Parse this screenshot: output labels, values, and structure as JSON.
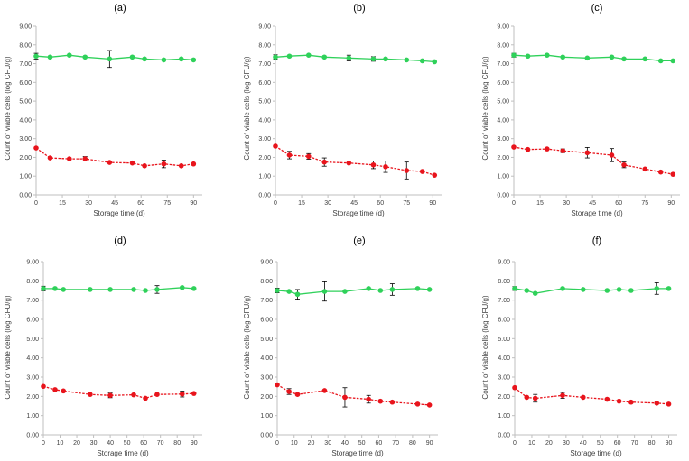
{
  "colors": {
    "green": "#2fd15a",
    "red": "#e8141c",
    "axis": "#bfbfbf",
    "text": "#404040"
  },
  "chart_data": [
    {
      "type": "line",
      "title": "(a)",
      "xlabel": "Storage time (d)",
      "ylabel": "Count of viable cells (log CFU/g)",
      "xlim": [
        0,
        95
      ],
      "xticks": [
        0,
        15,
        30,
        45,
        60,
        75,
        90
      ],
      "ylim": [
        0,
        9
      ],
      "yticks": [
        "0.00",
        "1.00",
        "2.00",
        "3.00",
        "4.00",
        "5.00",
        "6.00",
        "7.00",
        "8.00",
        "9.00"
      ],
      "series": [
        {
          "name": "green",
          "color": "#2fd15a",
          "dashed": false,
          "x": [
            0,
            8,
            19,
            28,
            42,
            55,
            62,
            73,
            83,
            90
          ],
          "y": [
            7.4,
            7.35,
            7.45,
            7.35,
            7.25,
            7.35,
            7.25,
            7.2,
            7.25,
            7.2
          ],
          "err": [
            0.15,
            0,
            0,
            0,
            0.45,
            0,
            0,
            0,
            0,
            0
          ]
        },
        {
          "name": "red",
          "color": "#e8141c",
          "dashed": true,
          "x": [
            0,
            8,
            19,
            28,
            42,
            55,
            62,
            73,
            83,
            90
          ],
          "y": [
            2.5,
            1.97,
            1.92,
            1.92,
            1.73,
            1.7,
            1.55,
            1.65,
            1.55,
            1.65
          ],
          "err": [
            0,
            0,
            0,
            0.12,
            0,
            0,
            0,
            0.2,
            0,
            0
          ]
        }
      ]
    },
    {
      "type": "line",
      "title": "(b)",
      "xlabel": "Storage time (d)",
      "ylabel": "Count of viable cells (log CFU/g)",
      "xlim": [
        0,
        95
      ],
      "xticks": [
        0,
        15,
        30,
        45,
        60,
        75,
        90
      ],
      "ylim": [
        0,
        9
      ],
      "yticks": [
        "0.00",
        "1.00",
        "2.00",
        "3.00",
        "4.00",
        "5.00",
        "6.00",
        "7.00",
        "8.00",
        "9.00"
      ],
      "series": [
        {
          "name": "green",
          "color": "#2fd15a",
          "dashed": false,
          "x": [
            0,
            8,
            19,
            28,
            42,
            56,
            63,
            75,
            84,
            91
          ],
          "y": [
            7.35,
            7.4,
            7.45,
            7.35,
            7.3,
            7.25,
            7.25,
            7.2,
            7.15,
            7.1
          ],
          "err": [
            0.12,
            0,
            0,
            0,
            0.15,
            0.12,
            0,
            0,
            0,
            0
          ]
        },
        {
          "name": "red",
          "color": "#e8141c",
          "dashed": true,
          "x": [
            0,
            8,
            19,
            28,
            42,
            56,
            63,
            75,
            84,
            91
          ],
          "y": [
            2.6,
            2.12,
            2.05,
            1.75,
            1.7,
            1.6,
            1.5,
            1.3,
            1.25,
            1.05
          ],
          "err": [
            0,
            0.2,
            0.15,
            0.22,
            0,
            0.2,
            0.3,
            0.45,
            0,
            0
          ]
        }
      ]
    },
    {
      "type": "line",
      "title": "(c)",
      "xlabel": "Storage time (d)",
      "ylabel": "Count of viable cells (log CFU/g)",
      "xlim": [
        0,
        95
      ],
      "xticks": [
        0,
        15,
        30,
        45,
        60,
        75,
        90
      ],
      "ylim": [
        0,
        9
      ],
      "yticks": [
        "0.00",
        "1.00",
        "2.00",
        "3.00",
        "4.00",
        "5.00",
        "6.00",
        "7.00",
        "8.00",
        "9.00"
      ],
      "series": [
        {
          "name": "green",
          "color": "#2fd15a",
          "dashed": false,
          "x": [
            0,
            8,
            19,
            28,
            42,
            56,
            63,
            75,
            84,
            91
          ],
          "y": [
            7.45,
            7.4,
            7.45,
            7.35,
            7.3,
            7.35,
            7.25,
            7.25,
            7.15,
            7.15
          ],
          "err": [
            0.1,
            0,
            0,
            0,
            0,
            0,
            0,
            0,
            0,
            0
          ]
        },
        {
          "name": "red",
          "color": "#e8141c",
          "dashed": true,
          "x": [
            0,
            8,
            19,
            28,
            42,
            56,
            63,
            75,
            84,
            91
          ],
          "y": [
            2.55,
            2.42,
            2.45,
            2.35,
            2.25,
            2.12,
            1.6,
            1.38,
            1.22,
            1.1
          ],
          "err": [
            0,
            0,
            0,
            0.1,
            0.28,
            0.35,
            0.15,
            0,
            0,
            0
          ]
        }
      ]
    },
    {
      "type": "line",
      "title": "(d)",
      "xlabel": "Storage time (d)",
      "ylabel": "Count of viable cells (log CFU/g)",
      "xlim": [
        0,
        95
      ],
      "xticks": [
        0,
        10,
        20,
        30,
        40,
        50,
        60,
        70,
        80,
        90
      ],
      "ylim": [
        0,
        9
      ],
      "yticks": [
        "0.00",
        "1.00",
        "2.00",
        "3.00",
        "4.00",
        "5.00",
        "6.00",
        "7.00",
        "8.00",
        "9.00"
      ],
      "series": [
        {
          "name": "green",
          "color": "#2fd15a",
          "dashed": false,
          "x": [
            0,
            7,
            12,
            28,
            40,
            54,
            61,
            68,
            83,
            90
          ],
          "y": [
            7.6,
            7.6,
            7.55,
            7.55,
            7.55,
            7.55,
            7.5,
            7.55,
            7.65,
            7.6
          ],
          "err": [
            0.12,
            0,
            0,
            0,
            0,
            0,
            0,
            0.2,
            0,
            0
          ]
        },
        {
          "name": "red",
          "color": "#e8141c",
          "dashed": true,
          "x": [
            0,
            7,
            12,
            28,
            40,
            54,
            61,
            68,
            83,
            90
          ],
          "y": [
            2.52,
            2.35,
            2.28,
            2.1,
            2.05,
            2.08,
            1.9,
            2.1,
            2.12,
            2.15
          ],
          "err": [
            0,
            0,
            0,
            0,
            0.12,
            0,
            0,
            0,
            0.15,
            0
          ]
        }
      ]
    },
    {
      "type": "line",
      "title": "(e)",
      "xlabel": "Storage time (d)",
      "ylabel": "Count of viable cells (log CFU/g)",
      "xlim": [
        0,
        95
      ],
      "xticks": [
        0,
        10,
        20,
        30,
        40,
        50,
        60,
        70,
        80,
        90
      ],
      "ylim": [
        0,
        9
      ],
      "yticks": [
        "0.00",
        "1.00",
        "2.00",
        "3.00",
        "4.00",
        "5.00",
        "6.00",
        "7.00",
        "8.00",
        "9.00"
      ],
      "series": [
        {
          "name": "green",
          "color": "#2fd15a",
          "dashed": false,
          "x": [
            0,
            7,
            12,
            28,
            40,
            54,
            61,
            68,
            83,
            90
          ],
          "y": [
            7.5,
            7.45,
            7.3,
            7.45,
            7.45,
            7.6,
            7.5,
            7.55,
            7.6,
            7.55
          ],
          "err": [
            0.12,
            0,
            0.25,
            0.5,
            0,
            0,
            0,
            0.3,
            0,
            0
          ]
        },
        {
          "name": "red",
          "color": "#e8141c",
          "dashed": true,
          "x": [
            0,
            7,
            12,
            28,
            40,
            54,
            61,
            68,
            83,
            90
          ],
          "y": [
            2.6,
            2.25,
            2.1,
            2.3,
            1.95,
            1.85,
            1.75,
            1.7,
            1.6,
            1.55
          ],
          "err": [
            0,
            0.15,
            0,
            0,
            0.5,
            0.2,
            0,
            0,
            0,
            0
          ]
        }
      ]
    },
    {
      "type": "line",
      "title": "(f)",
      "xlabel": "Storage time (d)",
      "ylabel": "Count of viable cells (log CFU/g)",
      "xlim": [
        0,
        95
      ],
      "xticks": [
        0,
        10,
        20,
        30,
        40,
        50,
        60,
        70,
        80,
        90
      ],
      "ylim": [
        0,
        9
      ],
      "yticks": [
        "0.00",
        "1.00",
        "2.00",
        "3.00",
        "4.00",
        "5.00",
        "6.00",
        "7.00",
        "8.00",
        "9.00"
      ],
      "series": [
        {
          "name": "green",
          "color": "#2fd15a",
          "dashed": false,
          "x": [
            0,
            7,
            12,
            28,
            40,
            54,
            61,
            68,
            83,
            90
          ],
          "y": [
            7.6,
            7.5,
            7.35,
            7.6,
            7.55,
            7.5,
            7.55,
            7.5,
            7.6,
            7.6
          ],
          "err": [
            0.1,
            0,
            0,
            0,
            0,
            0,
            0,
            0,
            0.3,
            0
          ]
        },
        {
          "name": "red",
          "color": "#e8141c",
          "dashed": true,
          "x": [
            0,
            7,
            12,
            28,
            40,
            54,
            61,
            68,
            83,
            90
          ],
          "y": [
            2.45,
            1.95,
            1.9,
            2.05,
            1.95,
            1.85,
            1.75,
            1.7,
            1.65,
            1.6
          ],
          "err": [
            0,
            0,
            0.2,
            0.15,
            0,
            0,
            0,
            0,
            0,
            0
          ]
        }
      ]
    }
  ]
}
